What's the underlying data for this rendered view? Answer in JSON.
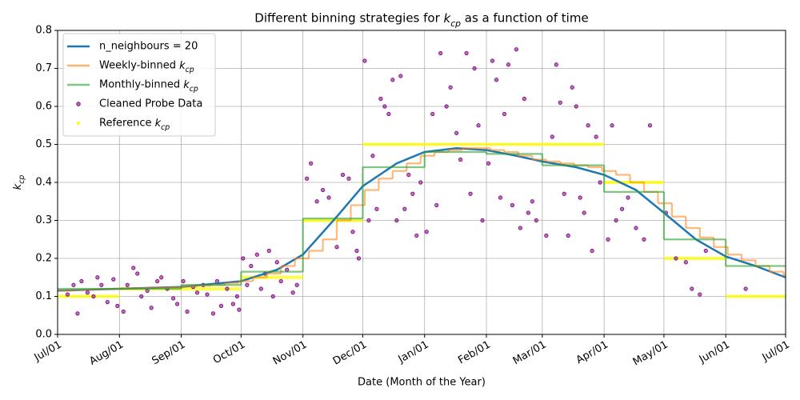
{
  "chart_data": {
    "type": "line",
    "title": "Different binning strategies for kcp as a function of time",
    "x_label": "Date (Month of the Year)",
    "y_label": "kcp",
    "xlim": [
      0,
      365
    ],
    "xticks": [
      {
        "value": 0,
        "label": "Jul/01"
      },
      {
        "value": 31,
        "label": "Aug/01"
      },
      {
        "value": 62,
        "label": "Sep/01"
      },
      {
        "value": 92,
        "label": "Oct/01"
      },
      {
        "value": 123,
        "label": "Nov/01"
      },
      {
        "value": 153,
        "label": "Dec/01"
      },
      {
        "value": 184,
        "label": "Jan/01"
      },
      {
        "value": 215,
        "label": "Feb/01"
      },
      {
        "value": 243,
        "label": "Mar/01"
      },
      {
        "value": 274,
        "label": "Apr/01"
      },
      {
        "value": 304,
        "label": "May/01"
      },
      {
        "value": 335,
        "label": "Jun/01"
      },
      {
        "value": 365,
        "label": "Jul/01"
      }
    ],
    "ylim": [
      0,
      0.8
    ],
    "yticks": [
      {
        "value": 0,
        "label": "0.0"
      },
      0.1,
      0.2,
      0.3,
      0.4,
      0.5,
      0.6,
      0.7,
      0.8
    ],
    "grid": true,
    "legend": "upper left",
    "series": [
      {
        "name": "n_neighbours = 20",
        "kind": "line",
        "color": "#1f77b4",
        "x": [
          0,
          31,
          62,
          92,
          110,
          123,
          140,
          153,
          170,
          184,
          200,
          215,
          230,
          243,
          260,
          274,
          290,
          304,
          320,
          335,
          350,
          365
        ],
        "values": [
          0.115,
          0.12,
          0.125,
          0.14,
          0.17,
          0.21,
          0.31,
          0.39,
          0.45,
          0.48,
          0.49,
          0.485,
          0.47,
          0.455,
          0.44,
          0.42,
          0.38,
          0.32,
          0.25,
          0.205,
          0.18,
          0.15
        ]
      },
      {
        "name": "Weekly-binned kcp",
        "kind": "step",
        "color": "#ff7f0e",
        "x": [
          0,
          7,
          14,
          21,
          28,
          35,
          42,
          49,
          56,
          63,
          70,
          77,
          84,
          91,
          98,
          105,
          112,
          119,
          126,
          133,
          140,
          147,
          154,
          161,
          168,
          175,
          182,
          189,
          196,
          203,
          210,
          217,
          224,
          231,
          238,
          245,
          252,
          259,
          266,
          273,
          280,
          287,
          294,
          301,
          308,
          315,
          322,
          329,
          336,
          343,
          350,
          357,
          364
        ],
        "values": [
          0.115,
          0.117,
          0.118,
          0.119,
          0.12,
          0.121,
          0.122,
          0.123,
          0.124,
          0.126,
          0.128,
          0.13,
          0.135,
          0.14,
          0.15,
          0.16,
          0.18,
          0.2,
          0.22,
          0.25,
          0.3,
          0.34,
          0.38,
          0.41,
          0.43,
          0.45,
          0.47,
          0.48,
          0.485,
          0.49,
          0.49,
          0.485,
          0.48,
          0.47,
          0.46,
          0.455,
          0.45,
          0.445,
          0.44,
          0.43,
          0.42,
          0.4,
          0.375,
          0.345,
          0.31,
          0.28,
          0.255,
          0.23,
          0.21,
          0.195,
          0.18,
          0.165,
          0.155
        ]
      },
      {
        "name": "Monthly-binned kcp",
        "kind": "step",
        "color": "#2ca02c",
        "x": [
          0,
          31,
          62,
          92,
          123,
          153,
          184,
          215,
          243,
          274,
          304,
          335
        ],
        "values": [
          0.12,
          0.12,
          0.13,
          0.165,
          0.305,
          0.44,
          0.48,
          0.475,
          0.445,
          0.375,
          0.25,
          0.18
        ]
      },
      {
        "name": "Cleaned Probe Data",
        "kind": "scatter",
        "color": "#800080",
        "x": [
          5,
          8,
          10,
          12,
          15,
          18,
          20,
          22,
          25,
          28,
          30,
          33,
          35,
          38,
          40,
          42,
          45,
          47,
          50,
          52,
          55,
          58,
          60,
          63,
          65,
          68,
          70,
          73,
          75,
          78,
          80,
          82,
          85,
          88,
          90,
          91,
          93,
          95,
          97,
          100,
          102,
          104,
          106,
          108,
          110,
          112,
          115,
          118,
          120,
          125,
          127,
          130,
          133,
          136,
          140,
          143,
          146,
          148,
          150,
          151,
          154,
          156,
          158,
          160,
          162,
          164,
          166,
          168,
          170,
          172,
          174,
          176,
          178,
          180,
          182,
          185,
          188,
          190,
          192,
          195,
          197,
          200,
          202,
          205,
          207,
          209,
          211,
          213,
          216,
          218,
          220,
          222,
          224,
          226,
          228,
          230,
          232,
          234,
          236,
          238,
          240,
          245,
          248,
          250,
          252,
          254,
          256,
          258,
          260,
          262,
          264,
          266,
          268,
          270,
          272,
          276,
          278,
          280,
          283,
          286,
          290,
          294,
          297,
          305,
          310,
          315,
          318,
          322,
          325,
          345
        ],
        "values": [
          0.105,
          0.13,
          0.055,
          0.14,
          0.11,
          0.1,
          0.15,
          0.13,
          0.085,
          0.145,
          0.075,
          0.06,
          0.13,
          0.175,
          0.16,
          0.1,
          0.115,
          0.07,
          0.14,
          0.15,
          0.12,
          0.095,
          0.08,
          0.14,
          0.06,
          0.125,
          0.11,
          0.13,
          0.105,
          0.055,
          0.14,
          0.075,
          0.12,
          0.08,
          0.1,
          0.065,
          0.2,
          0.13,
          0.18,
          0.21,
          0.12,
          0.16,
          0.22,
          0.1,
          0.19,
          0.14,
          0.17,
          0.11,
          0.13,
          0.41,
          0.45,
          0.35,
          0.38,
          0.36,
          0.23,
          0.42,
          0.41,
          0.27,
          0.22,
          0.2,
          0.72,
          0.3,
          0.47,
          0.33,
          0.62,
          0.6,
          0.58,
          0.67,
          0.3,
          0.68,
          0.33,
          0.42,
          0.37,
          0.26,
          0.4,
          0.27,
          0.58,
          0.34,
          0.74,
          0.6,
          0.65,
          0.53,
          0.46,
          0.74,
          0.37,
          0.7,
          0.55,
          0.3,
          0.45,
          0.72,
          0.67,
          0.36,
          0.58,
          0.71,
          0.34,
          0.75,
          0.28,
          0.62,
          0.32,
          0.35,
          0.3,
          0.26,
          0.52,
          0.71,
          0.61,
          0.37,
          0.26,
          0.65,
          0.6,
          0.36,
          0.32,
          0.55,
          0.22,
          0.52,
          0.4,
          0.25,
          0.55,
          0.3,
          0.33,
          0.36,
          0.28,
          0.25,
          0.55,
          0.32,
          0.2,
          0.19,
          0.12,
          0.105,
          0.22,
          0.12
        ]
      },
      {
        "name": "Reference kcp",
        "kind": "segments",
        "color": "#ffff00",
        "x": [
          0,
          31,
          62,
          92,
          123,
          153,
          184,
          215,
          243,
          274,
          304,
          335
        ],
        "values": [
          0.1,
          0.12,
          0.12,
          0.15,
          0.3,
          0.5,
          0.5,
          0.5,
          0.5,
          0.4,
          0.2,
          0.1
        ]
      }
    ]
  }
}
